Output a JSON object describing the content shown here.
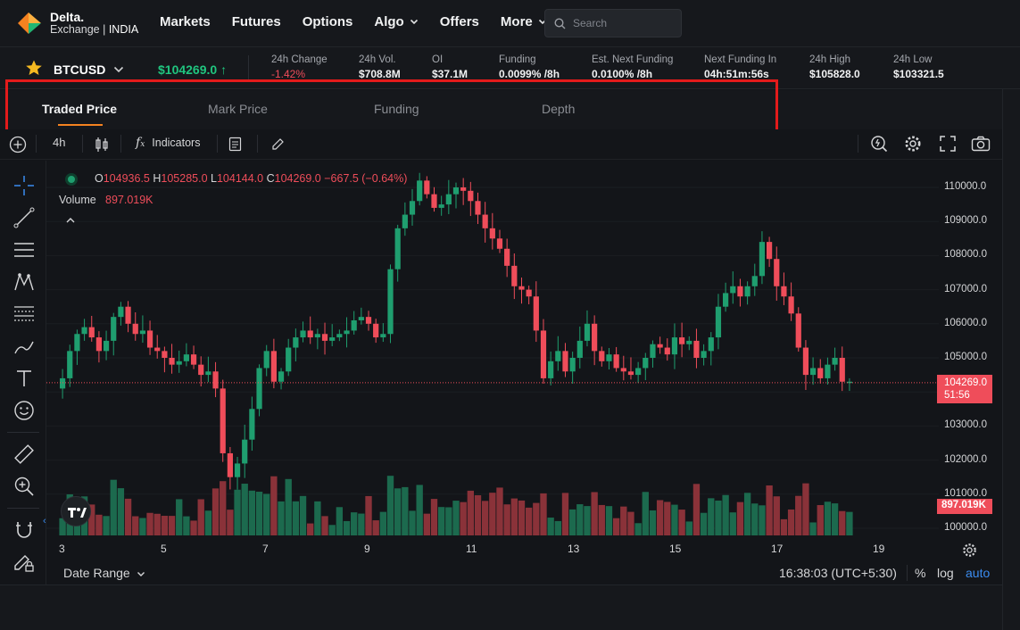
{
  "brand": {
    "name": "Delta.",
    "sub": "Exchange",
    "region": "INDIA"
  },
  "nav": {
    "items": [
      {
        "label": "Markets",
        "dropdown": false
      },
      {
        "label": "Futures",
        "dropdown": false
      },
      {
        "label": "Options",
        "dropdown": false
      },
      {
        "label": "Algo",
        "dropdown": true
      },
      {
        "label": "Offers",
        "dropdown": false
      },
      {
        "label": "More",
        "dropdown": true
      }
    ],
    "search_placeholder": "Search"
  },
  "ticker": {
    "symbol": "BTCUSD",
    "price": "$104269.0",
    "stats": [
      {
        "label": "24h Change",
        "value": "-1.42%",
        "negative": true
      },
      {
        "label": "24h Vol.",
        "value": "$708.8M",
        "negative": false
      },
      {
        "label": "OI",
        "value": "$37.1M",
        "negative": false
      },
      {
        "label": "Funding",
        "value": "0.0099% /8h",
        "negative": false
      },
      {
        "label": "Est. Next Funding",
        "value": "0.0100% /8h",
        "negative": false
      },
      {
        "label": "Next Funding In",
        "value": "04h:51m:56s",
        "negative": false
      },
      {
        "label": "24h High",
        "value": "$105828.0",
        "negative": false
      },
      {
        "label": "24h Low",
        "value": "$103321.5",
        "negative": false
      }
    ]
  },
  "tabs": [
    "Traded Price",
    "Mark Price",
    "Funding",
    "Depth"
  ],
  "active_tab": "Traded Price",
  "right_panel_letter": "O",
  "chart_toolbar": {
    "interval": "4h",
    "indicators": "Indicators"
  },
  "legend": {
    "o_label": "O",
    "o": "104936.5",
    "h_label": "H",
    "h": "105285.0",
    "l_label": "L",
    "l": "104144.0",
    "c_label": "C",
    "c": "104269.0",
    "change": "−667.5 (−0.64%)",
    "volume_label": "Volume",
    "volume": "897.019K"
  },
  "bottom_bar": {
    "date_range": "Date Range",
    "time": "16:38:03 (UTC+5:30)",
    "percent": "%",
    "log": "log",
    "auto": "auto"
  },
  "colors": {
    "up": "#1f9e6f",
    "down": "#ef4d5a",
    "accent": "#f58220",
    "link": "#3b8cf0"
  },
  "chart_data": {
    "type": "candlestick",
    "symbol": "BTCUSD",
    "interval": "4h",
    "x_ticks": [
      "3",
      "5",
      "7",
      "9",
      "11",
      "13",
      "15",
      "17",
      "19"
    ],
    "y_ticks": [
      "110000.0",
      "109000.0",
      "108000.0",
      "107000.0",
      "106000.0",
      "105000.0",
      "104000.0",
      "103000.0",
      "102000.0",
      "101000.0",
      "100000.0"
    ],
    "ylim": [
      99800,
      110500
    ],
    "last_price": "104269.0",
    "countdown": "51:56",
    "last_volume": "897.019K",
    "closes": [
      104400,
      105200,
      105700,
      105900,
      105600,
      105200,
      105500,
      106200,
      106500,
      106000,
      105700,
      105800,
      105300,
      105200,
      105000,
      104800,
      104900,
      105100,
      104800,
      104500,
      104600,
      104100,
      102200,
      101500,
      101900,
      102600,
      103500,
      104700,
      105200,
      104300,
      104600,
      105300,
      105600,
      105800,
      105600,
      105700,
      105500,
      105600,
      105700,
      105800,
      106100,
      106200,
      106000,
      105600,
      105700,
      107600,
      108800,
      109200,
      109600,
      110200,
      109800,
      109400,
      109500,
      109800,
      110000,
      109900,
      109600,
      109200,
      108800,
      108500,
      108200,
      107700,
      107100,
      107000,
      106800,
      105800,
      104400,
      104900,
      105200,
      104600,
      105000,
      105500,
      106000,
      105200,
      104900,
      105100,
      104700,
      104600,
      104500,
      104700,
      105000,
      105400,
      105300,
      105100,
      105600,
      105400,
      105500,
      105000,
      105200,
      105600,
      106500,
      106900,
      107100,
      106800,
      107100,
      107400,
      108400,
      107900,
      107100,
      106800,
      106300,
      105300,
      104500,
      104700,
      104400,
      104800,
      105000,
      104300,
      104300
    ]
  }
}
